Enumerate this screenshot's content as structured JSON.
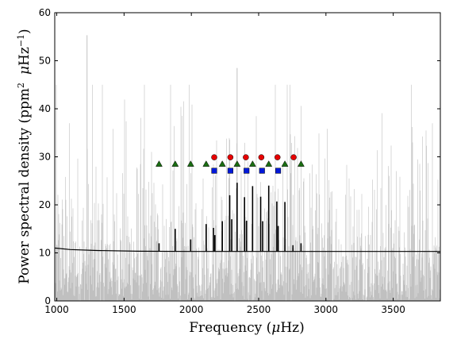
{
  "chart_data": {
    "type": "line",
    "title": "",
    "xlabel": "Frequency ($\\mu$Hz)",
    "ylabel": "Power spectral density (ppm$^2$ $\\mu$Hz$^{-1}$)",
    "xlabel_parts": [
      "Frequency (",
      "μ",
      "Hz)"
    ],
    "ylabel_parts": [
      "Power spectral density (",
      "ppm",
      "2",
      "μ",
      "Hz",
      "−1",
      ")"
    ],
    "xlim": [
      985,
      3850
    ],
    "ylim": [
      0,
      60
    ],
    "xticks": [
      1000,
      1500,
      2000,
      2500,
      3000,
      3500
    ],
    "yticks": [
      0,
      10,
      20,
      30,
      40,
      50,
      60
    ],
    "grid": false,
    "series": [
      {
        "kind": "noisy-power-spectrum",
        "color": "#c0c0c0",
        "x_range": [
          985,
          3850
        ],
        "baseline": 10.3,
        "max": 55.3,
        "peak_at": 1225
      },
      {
        "kind": "model-fit",
        "color": "#000000",
        "background": [
          [
            985,
            11.0
          ],
          [
            1100,
            10.7
          ],
          [
            1300,
            10.5
          ],
          [
            1600,
            10.35
          ],
          [
            2000,
            10.3
          ],
          [
            3850,
            10.3
          ]
        ],
        "peaks": [
          {
            "x": 1760,
            "y": 12.0
          },
          {
            "x": 1880,
            "y": 15.0
          },
          {
            "x": 1995,
            "y": 12.8
          },
          {
            "x": 2110,
            "y": 16.0
          },
          {
            "x": 2165,
            "y": 15.2
          },
          {
            "x": 2175,
            "y": 13.7
          },
          {
            "x": 2230,
            "y": 16.6
          },
          {
            "x": 2285,
            "y": 22.0
          },
          {
            "x": 2300,
            "y": 17.0
          },
          {
            "x": 2340,
            "y": 24.6
          },
          {
            "x": 2395,
            "y": 21.6
          },
          {
            "x": 2410,
            "y": 16.7
          },
          {
            "x": 2455,
            "y": 23.9
          },
          {
            "x": 2515,
            "y": 21.7
          },
          {
            "x": 2530,
            "y": 16.6
          },
          {
            "x": 2575,
            "y": 24.0
          },
          {
            "x": 2635,
            "y": 20.7
          },
          {
            "x": 2645,
            "y": 15.6
          },
          {
            "x": 2695,
            "y": 20.6
          },
          {
            "x": 2755,
            "y": 11.6
          },
          {
            "x": 2815,
            "y": 12.0
          }
        ]
      }
    ],
    "markers": {
      "triangles": {
        "color": "#1a6e12",
        "y": 28.5,
        "x": [
          1760,
          1880,
          1995,
          2110,
          2230,
          2340,
          2455,
          2575,
          2695,
          2815
        ]
      },
      "circles": {
        "color": "#e60000",
        "y": 29.9,
        "x": [
          2170,
          2290,
          2405,
          2520,
          2640,
          2760
        ]
      },
      "squares": {
        "color": "#0019d9",
        "y": 27.1,
        "x": [
          2170,
          2290,
          2410,
          2525,
          2645
        ]
      }
    }
  }
}
